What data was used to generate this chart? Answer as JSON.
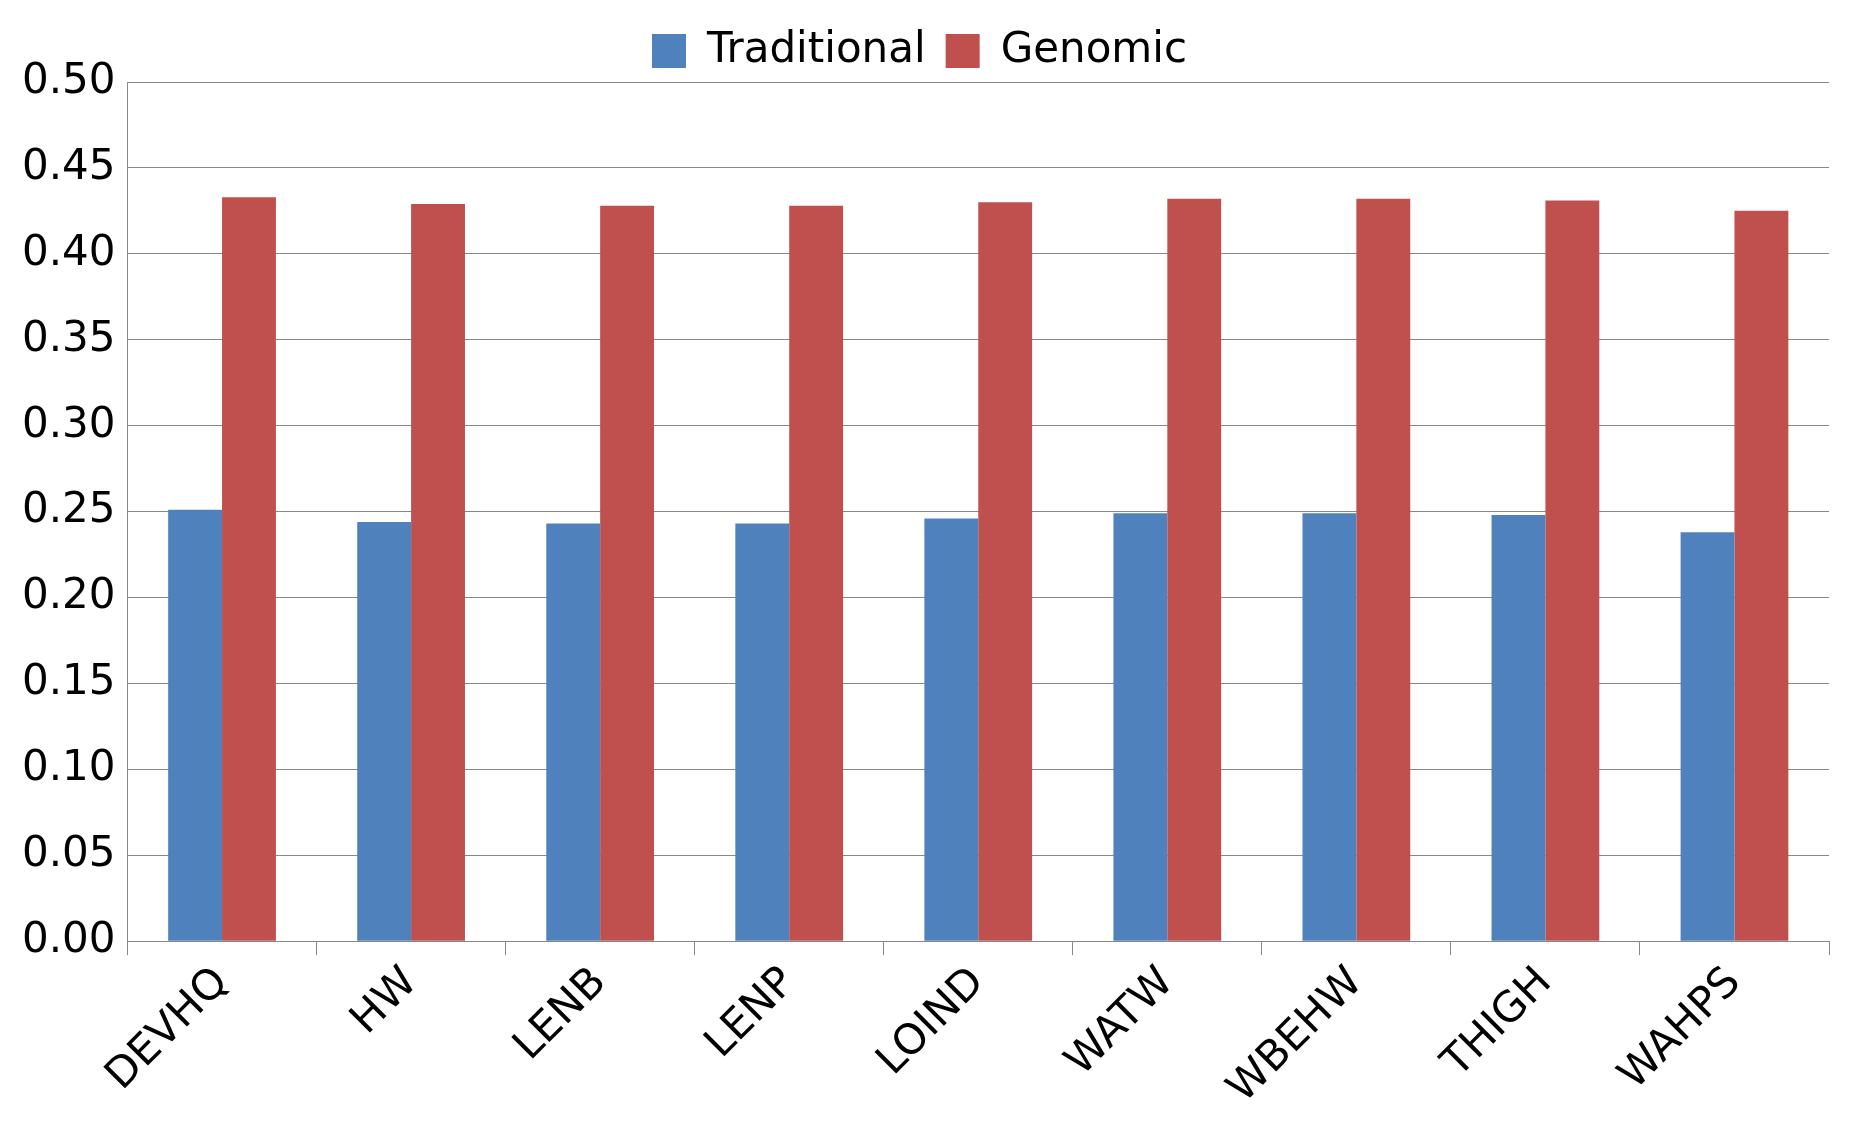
{
  "chart_data": {
    "type": "bar",
    "categories": [
      "DEVHQ",
      "HW",
      "LENB",
      "LENP",
      "LOIND",
      "WATW",
      "WBEHW",
      "THIGH",
      "WAHPS"
    ],
    "series": [
      {
        "name": "Traditional",
        "color": "#4f81bd",
        "values": [
          0.251,
          0.244,
          0.243,
          0.243,
          0.246,
          0.249,
          0.249,
          0.248,
          0.238
        ]
      },
      {
        "name": "Genomic",
        "color": "#c0504d",
        "values": [
          0.433,
          0.429,
          0.428,
          0.428,
          0.43,
          0.432,
          0.432,
          0.431,
          0.425
        ]
      }
    ],
    "ylim": [
      0,
      0.5
    ],
    "yticks": [
      {
        "value": 0,
        "label": "0.00"
      },
      {
        "value": 0.05,
        "label": "0.05"
      },
      {
        "value": 0.1,
        "label": "0.10"
      },
      {
        "value": 0.15,
        "label": "0.15"
      },
      {
        "value": 0.2,
        "label": "0.20"
      },
      {
        "value": 0.25,
        "label": "0.25"
      },
      {
        "value": 0.3,
        "label": "0.30"
      },
      {
        "value": 0.35,
        "label": "0.35"
      },
      {
        "value": 0.4,
        "label": "0.40"
      },
      {
        "value": 0.45,
        "label": "0.45"
      },
      {
        "value": 0.5,
        "label": "0.50"
      }
    ],
    "grid": "y",
    "legend": "top"
  }
}
